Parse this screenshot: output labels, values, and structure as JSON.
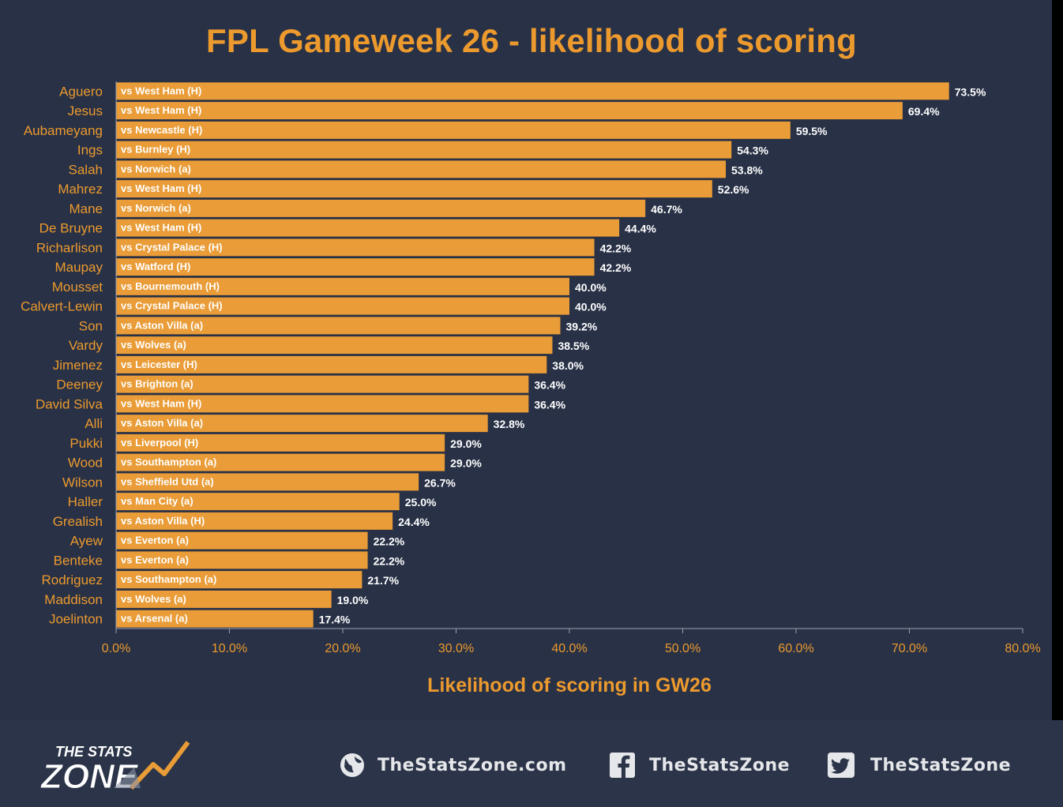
{
  "title": "FPL Gameweek 26 - likelihood of scoring",
  "chart_data": {
    "type": "bar",
    "orientation": "horizontal",
    "title": "FPL Gameweek 26 - likelihood of scoring",
    "xlabel": "Likelihood of scoring in GW26",
    "ylabel": "",
    "xlim": [
      0,
      80
    ],
    "x_ticks": [
      "0.0%",
      "10.0%",
      "20.0%",
      "30.0%",
      "40.0%",
      "50.0%",
      "60.0%",
      "70.0%",
      "80.0%"
    ],
    "grid": false,
    "bar_color": "#e99c37",
    "categories": [
      "Aguero",
      "Jesus",
      "Aubameyang",
      "Ings",
      "Salah",
      "Mahrez",
      "Mane",
      "De Bruyne",
      "Richarlison",
      "Maupay",
      "Mousset",
      "Calvert-Lewin",
      "Son",
      "Vardy",
      "Jimenez",
      "Deeney",
      "David Silva",
      "Alli",
      "Pukki",
      "Wood",
      "Wilson",
      "Haller",
      "Grealish",
      "Ayew",
      "Benteke",
      "Rodriguez",
      "Maddison",
      "Joelinton"
    ],
    "fixtures": [
      "vs West Ham (H)",
      "vs West Ham (H)",
      "vs Newcastle (H)",
      "vs Burnley (H)",
      "vs Norwich (a)",
      "vs West Ham (H)",
      "vs Norwich (a)",
      "vs West Ham (H)",
      "vs Crystal Palace (H)",
      "vs Watford (H)",
      "vs Bournemouth (H)",
      "vs Crystal Palace (H)",
      "vs Aston Villa (a)",
      "vs Wolves (a)",
      "vs Leicester (H)",
      "vs Brighton (a)",
      "vs West Ham (H)",
      "vs Aston Villa (a)",
      "vs Liverpool (H)",
      "vs Southampton (a)",
      "vs Sheffield Utd (a)",
      "vs Man City (a)",
      "vs Aston Villa (H)",
      "vs Everton (a)",
      "vs Everton (a)",
      "vs Southampton (a)",
      "vs Wolves (a)",
      "vs Arsenal (a)"
    ],
    "values": [
      73.5,
      69.4,
      59.5,
      54.3,
      53.8,
      52.6,
      46.7,
      44.4,
      42.2,
      42.2,
      40.0,
      40.0,
      39.2,
      38.5,
      38.0,
      36.4,
      36.4,
      32.8,
      29.0,
      29.0,
      26.7,
      25.0,
      24.4,
      22.2,
      22.2,
      21.7,
      19.0,
      17.4
    ],
    "value_labels": [
      "73.5%",
      "69.4%",
      "59.5%",
      "54.3%",
      "53.8%",
      "52.6%",
      "46.7%",
      "44.4%",
      "42.2%",
      "42.2%",
      "40.0%",
      "40.0%",
      "39.2%",
      "38.5%",
      "38.0%",
      "36.4%",
      "36.4%",
      "32.8%",
      "29.0%",
      "29.0%",
      "26.7%",
      "25.0%",
      "24.4%",
      "22.2%",
      "22.2%",
      "21.7%",
      "19.0%",
      "17.4%"
    ]
  },
  "footer": {
    "logo_text_top": "THE STATS",
    "logo_text_bottom": "ZONE",
    "website": "TheStatsZone.com",
    "facebook": "TheStatsZone",
    "twitter": "TheStatsZone",
    "globe_icon": "globe-icon",
    "facebook_icon": "facebook-icon",
    "twitter_icon": "twitter-icon"
  },
  "colors": {
    "accent": "#ec9a2e",
    "bar": "#e99c37",
    "background": "#283146",
    "text": "#e6e7ea"
  }
}
